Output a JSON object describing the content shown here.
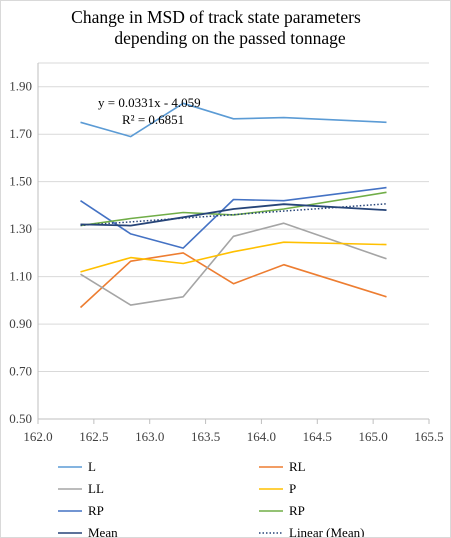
{
  "title": {
    "line1": "Change in MSD of track state parameters",
    "line2": "depending on the passed tonnage"
  },
  "trendline": {
    "equation": "y = 0.0331x - 4.059",
    "r_squared": "R² = 0.6851"
  },
  "chart_data": {
    "type": "line",
    "title": "Change in MSD of track state parameters depending on the passed tonnage",
    "xlabel": "",
    "ylabel": "",
    "xlim": [
      162.0,
      165.5
    ],
    "ylim": [
      0.5,
      2.0
    ],
    "x_ticks": [
      "162.0",
      "162.5",
      "163.0",
      "163.5",
      "164.0",
      "164.5",
      "165.0",
      "165.5"
    ],
    "y_ticks": [
      "0.50",
      "0.70",
      "0.90",
      "1.10",
      "1.30",
      "1.50",
      "1.70",
      "1.90"
    ],
    "grid": "horizontal",
    "legend_position": "bottom",
    "x": [
      162.38,
      162.83,
      163.3,
      163.75,
      164.2,
      165.12
    ],
    "series": [
      {
        "name": "L",
        "color": "#5b9bd5",
        "values": [
          1.75,
          1.69,
          1.83,
          1.765,
          1.77,
          1.75
        ]
      },
      {
        "name": "RL",
        "color": "#ed7d31",
        "values": [
          0.97,
          1.165,
          1.2,
          1.07,
          1.15,
          1.015
        ]
      },
      {
        "name": "LL",
        "color": "#a5a5a5",
        "values": [
          1.11,
          0.98,
          1.015,
          1.27,
          1.325,
          1.175
        ]
      },
      {
        "name": "P",
        "color": "#ffc000",
        "values": [
          1.12,
          1.18,
          1.155,
          1.205,
          1.245,
          1.235
        ]
      },
      {
        "name": "RP",
        "color": "#4472c4",
        "values": [
          1.42,
          1.28,
          1.22,
          1.425,
          1.42,
          1.475
        ]
      },
      {
        "name": "RP",
        "color": "#70ad47",
        "values": [
          1.315,
          1.345,
          1.37,
          1.36,
          1.385,
          1.455
        ]
      },
      {
        "name": "Mean",
        "color": "#264478",
        "values": [
          1.32,
          1.315,
          1.35,
          1.385,
          1.405,
          1.38
        ]
      }
    ],
    "trend": {
      "name": "Linear (Mean)",
      "color": "#264478",
      "style": "dotted",
      "slope": 0.0331,
      "intercept": -4.059
    }
  }
}
